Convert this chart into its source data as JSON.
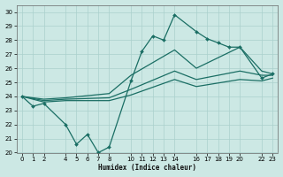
{
  "xlabel": "Humidex (Indice chaleur)",
  "bg_color": "#cce8e4",
  "grid_color": "#aad0cc",
  "line_color": "#1a6e64",
  "xlim": [
    -0.5,
    23.5
  ],
  "ylim": [
    20,
    30.5
  ],
  "xticks": [
    0,
    1,
    2,
    4,
    5,
    6,
    7,
    8,
    10,
    11,
    12,
    13,
    14,
    16,
    17,
    18,
    19,
    20,
    22,
    23
  ],
  "yticks": [
    20,
    21,
    22,
    23,
    24,
    25,
    26,
    27,
    28,
    29,
    30
  ],
  "line1_x": [
    0,
    1,
    2,
    4,
    5,
    6,
    7,
    8,
    10,
    11,
    12,
    13,
    14,
    16,
    17,
    18,
    19,
    20,
    22,
    23
  ],
  "line1_y": [
    24.0,
    23.3,
    23.5,
    22.0,
    20.6,
    21.3,
    20.0,
    20.4,
    25.1,
    27.2,
    28.3,
    28.0,
    29.8,
    28.6,
    28.1,
    27.8,
    27.5,
    27.5,
    25.3,
    25.6
  ],
  "line2_x": [
    0,
    2,
    4,
    8,
    10,
    14,
    16,
    20,
    22,
    23
  ],
  "line2_y": [
    24.0,
    23.8,
    23.9,
    24.2,
    25.5,
    27.3,
    26.0,
    27.5,
    25.8,
    25.6
  ],
  "line3_x": [
    0,
    2,
    4,
    8,
    10,
    14,
    16,
    20,
    22,
    23
  ],
  "line3_y": [
    24.0,
    23.7,
    23.8,
    23.9,
    24.5,
    25.8,
    25.2,
    25.8,
    25.5,
    25.5
  ],
  "line4_x": [
    0,
    2,
    4,
    8,
    10,
    14,
    16,
    20,
    22,
    23
  ],
  "line4_y": [
    24.0,
    23.6,
    23.7,
    23.7,
    24.1,
    25.2,
    24.7,
    25.2,
    25.1,
    25.3
  ]
}
